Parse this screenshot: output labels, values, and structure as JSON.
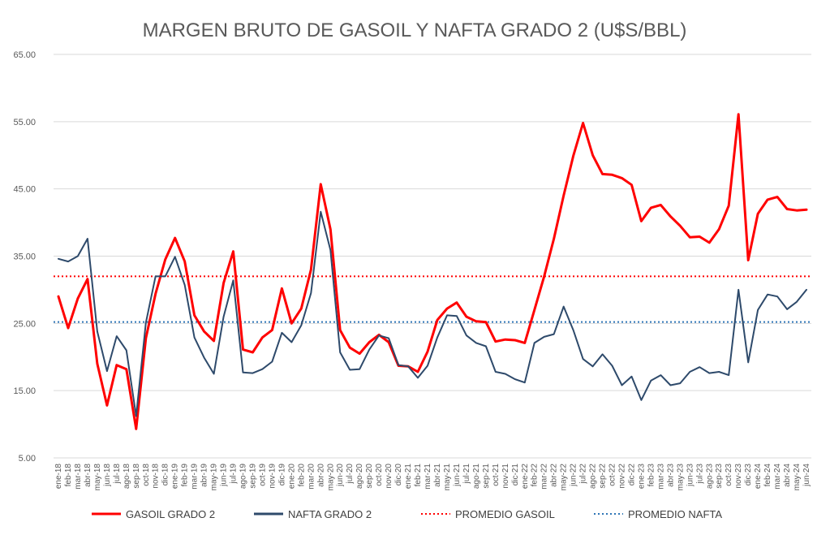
{
  "chart_data": {
    "type": "line",
    "title": "MARGEN BRUTO DE GASOIL Y NAFTA GRADO 2 (U$S/BBL)",
    "xlabel": "",
    "ylabel": "",
    "ylim": [
      5,
      65
    ],
    "yticks": [
      "5.00",
      "15.00",
      "25.00",
      "35.00",
      "45.00",
      "55.00",
      "65.00"
    ],
    "grid": true,
    "legend_position": "bottom",
    "x": [
      "ene-18",
      "feb-18",
      "mar-18",
      "abr-18",
      "may-18",
      "jun-18",
      "jul-18",
      "ago-18",
      "sep-18",
      "oct-18",
      "nov-18",
      "dic-18",
      "ene-19",
      "feb-19",
      "mar-19",
      "abr-19",
      "may-19",
      "jun-19",
      "jul-19",
      "ago-19",
      "sep-19",
      "oct-19",
      "nov-19",
      "dic-19",
      "ene-20",
      "feb-20",
      "mar-20",
      "abr-20",
      "may-20",
      "jun-20",
      "jul-20",
      "ago-20",
      "sep-20",
      "oct-20",
      "nov-20",
      "dic-20",
      "ene-21",
      "feb-21",
      "mar-21",
      "abr-21",
      "may-21",
      "jun-21",
      "jul-21",
      "ago-21",
      "sep-21",
      "oct-21",
      "nov-21",
      "dic-21",
      "ene-22",
      "feb-22",
      "mar-22",
      "abr-22",
      "may-22",
      "jun-22",
      "jul-22",
      "ago-22",
      "sep-22",
      "oct-22",
      "nov-22",
      "dic-22",
      "ene-23",
      "feb-23",
      "mar-23",
      "abr-23",
      "may-23",
      "jun-23",
      "jul-23",
      "ago-23",
      "sep-23",
      "oct-23",
      "nov-23",
      "dic-23",
      "ene-24",
      "feb-24",
      "mar-24",
      "abr-24",
      "may-24",
      "jun-24"
    ],
    "series": [
      {
        "name": "GASOIL GRADO 2",
        "color": "#ff0000",
        "style": "solid",
        "values": [
          29.0,
          24.3,
          28.7,
          31.6,
          19.0,
          12.8,
          18.8,
          18.2,
          9.3,
          22.8,
          29.4,
          34.5,
          37.7,
          34.2,
          26.2,
          23.8,
          22.4,
          31.0,
          35.7,
          21.1,
          20.7,
          22.9,
          24.0,
          30.2,
          25.0,
          27.2,
          33.0,
          45.7,
          39.0,
          24.0,
          21.4,
          20.5,
          22.2,
          23.3,
          22.2,
          18.7,
          18.6,
          17.8,
          20.8,
          25.5,
          27.2,
          28.1,
          26.0,
          25.3,
          25.2,
          22.3,
          22.6,
          22.5,
          22.1,
          27.0,
          32.0,
          37.6,
          44.0,
          49.9,
          54.8,
          50.0,
          47.2,
          47.1,
          46.6,
          45.6,
          40.2,
          42.2,
          42.6,
          40.9,
          39.5,
          37.8,
          37.9,
          37.0,
          39.0,
          42.5,
          56.1,
          34.4,
          41.3,
          43.4,
          43.8,
          42.0,
          41.8,
          41.9
        ]
      },
      {
        "name": "NAFTA GRADO 2",
        "color": "#2e4a6b",
        "style": "solid",
        "values": [
          34.6,
          34.2,
          35.0,
          37.6,
          23.8,
          17.9,
          23.1,
          21.0,
          11.2,
          25.1,
          32.0,
          32.0,
          34.9,
          30.7,
          22.9,
          19.9,
          17.5,
          26.0,
          31.4,
          17.7,
          17.6,
          18.2,
          19.3,
          23.6,
          22.2,
          24.7,
          29.5,
          41.6,
          35.9,
          20.7,
          18.1,
          18.2,
          21.1,
          23.2,
          22.8,
          18.8,
          18.6,
          16.9,
          18.7,
          22.9,
          26.2,
          26.1,
          23.2,
          22.1,
          21.6,
          17.8,
          17.5,
          16.7,
          16.2,
          22.1,
          23.0,
          23.4,
          27.5,
          24.0,
          19.7,
          18.6,
          20.4,
          18.7,
          15.8,
          17.1,
          13.6,
          16.5,
          17.3,
          15.8,
          16.1,
          17.8,
          18.5,
          17.6,
          17.8,
          17.3,
          30.0,
          19.2,
          27.0,
          29.3,
          29.0,
          27.1,
          28.2,
          30.0
        ]
      },
      {
        "name": "PROMEDIO GASOIL",
        "color": "#ff0000",
        "style": "dotted",
        "constant": 32.0
      },
      {
        "name": "PROMEDIO NAFTA",
        "color": "#2e75b6",
        "style": "dotted",
        "constant": 25.2
      }
    ]
  }
}
